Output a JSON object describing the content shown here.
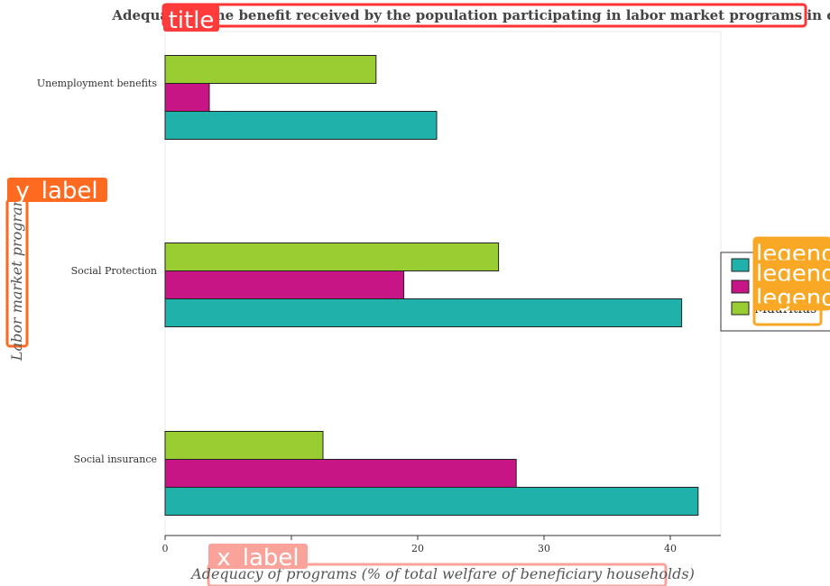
{
  "chart_data": {
    "type": "bar",
    "orientation": "horizontal",
    "title": "Adequacy of the benefit received by the population participating in labor market programs in countries",
    "xlabel": "Adequacy of programs (% of total welfare of beneficiary households)",
    "ylabel": "Labor market programs",
    "categories": [
      "Social insurance",
      "Social Protection",
      "Unemployment benefits"
    ],
    "series": [
      {
        "name": "",
        "color": "#20b2aa",
        "values": [
          42.2,
          40.9,
          21.5
        ]
      },
      {
        "name": "",
        "color": "#c71585",
        "values": [
          27.8,
          18.9,
          3.5
        ]
      },
      {
        "name": "Mauritius",
        "color": "#9acd32",
        "values": [
          12.5,
          26.4,
          16.7
        ]
      }
    ],
    "xlim": [
      0,
      44
    ],
    "xticks": [
      "0",
      "10",
      "20",
      "30",
      "40"
    ],
    "grid": false,
    "legend_position": "right"
  },
  "annotations": {
    "title_tag": "title",
    "x_tag": "x_label",
    "y_tag": "y_label",
    "legend_tags": [
      "legend",
      "legend",
      "legend",
      "legend"
    ]
  }
}
